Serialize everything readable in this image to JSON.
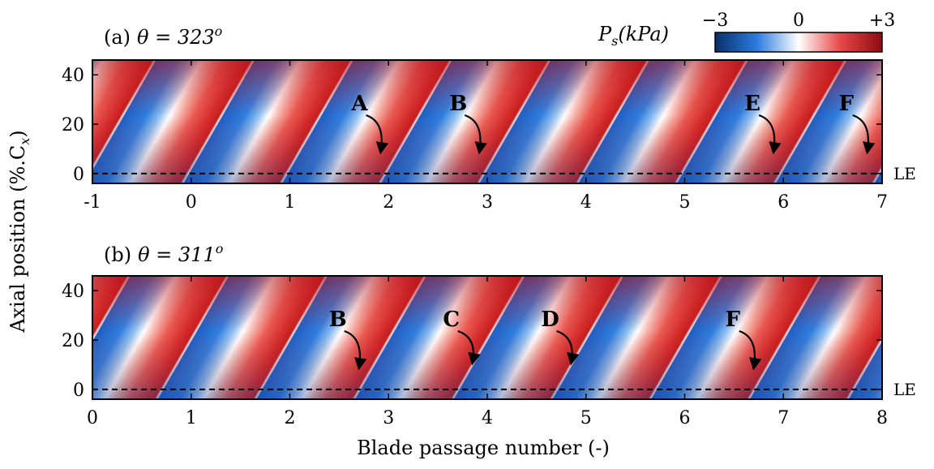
{
  "chart_data": [
    {
      "type": "heatmap",
      "panel_label": "(a)",
      "title": "θ = 323",
      "title_sup": "o",
      "x": {
        "range": [
          -1,
          7
        ],
        "ticks": [
          -1,
          0,
          1,
          2,
          3,
          4,
          5,
          6,
          7
        ]
      },
      "y": {
        "range": [
          -4,
          46
        ],
        "ticks": [
          0,
          20,
          40
        ]
      },
      "reference_line": {
        "y": 0,
        "label": "LE",
        "style": "dashed"
      },
      "stall_cells": [
        {
          "label": "A",
          "x": 1.92,
          "y": 8
        },
        {
          "label": "B",
          "x": 2.92,
          "y": 8
        },
        {
          "label": "E",
          "x": 5.9,
          "y": 8
        },
        {
          "label": "F",
          "x": 6.85,
          "y": 8
        }
      ]
    },
    {
      "type": "heatmap",
      "panel_label": "(b)",
      "title": "θ = 311",
      "title_sup": "o",
      "x": {
        "range": [
          0,
          8
        ],
        "ticks": [
          0,
          1,
          2,
          3,
          4,
          5,
          6,
          7,
          8
        ]
      },
      "y": {
        "range": [
          -4,
          46
        ],
        "ticks": [
          0,
          20,
          40
        ]
      },
      "reference_line": {
        "y": 0,
        "label": "LE",
        "style": "dashed"
      },
      "stall_cells": [
        {
          "label": "B",
          "x": 2.7,
          "y": 8
        },
        {
          "label": "C",
          "x": 3.85,
          "y": 10
        },
        {
          "label": "D",
          "x": 4.85,
          "y": 10
        },
        {
          "label": "F",
          "x": 6.7,
          "y": 8
        }
      ]
    }
  ],
  "colorbar": {
    "label": "P",
    "label_sub": "s",
    "label_rest": "(kPa)",
    "min": -3,
    "max": 3,
    "tick_labels": [
      "−3",
      "0",
      "+3"
    ],
    "colors": {
      "low": "#08306b",
      "mid_low": "#2b7bde",
      "mid": "#ffffff",
      "mid_high": "#e8474a",
      "high": "#8e0a0f"
    }
  },
  "ylabel_main": "Axial position (%.C",
  "ylabel_sub": "x",
  "ylabel_end": ")",
  "xlabel": "Blade passage number (-)"
}
